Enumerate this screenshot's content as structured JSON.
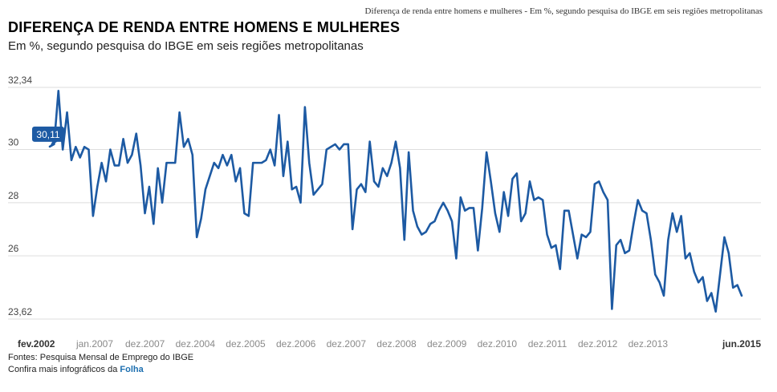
{
  "header": {
    "top_caption": "Diferença de renda entre homens e mulheres - Em %, segundo pesquisa do IBGE em seis regiões metropolitanas",
    "title": "DIFERENÇA DE RENDA ENTRE HOMENS E MULHERES",
    "subtitle": "Em %, segundo pesquisa do IBGE em seis regiões metropolitanas"
  },
  "footer": {
    "sources": "Fontes: Pesquisa Mensal de Emprego do IBGE",
    "more_prefix": "Confira mais infográficos da ",
    "brand": "Folha"
  },
  "colors": {
    "line": "#1d5aa3",
    "grid": "#dddddd",
    "label_box": "#1d5aa3",
    "axis_text": "#8a8a8a",
    "axis_text_bold": "#333333"
  },
  "chart_data": {
    "type": "line",
    "title": "DIFERENÇA DE RENDA ENTRE HOMENS E MULHERES",
    "subtitle": "Em %, segundo pesquisa do IBGE em seis regiões metropolitanas",
    "ylim": [
      23.62,
      32.34
    ],
    "yticks": [
      "32,34",
      "30",
      "28",
      "26",
      "23,62"
    ],
    "ytick_values": [
      32.34,
      30,
      28,
      26,
      23.62
    ],
    "xtick_labels": [
      "fev.2002",
      "jan.2007",
      "dez.2007",
      "dez.2004",
      "dez.2005",
      "dez.2006",
      "dez.2007",
      "dez.2008",
      "dez.2009",
      "dez.2010",
      "dez.2011",
      "dez.2012",
      "dez.2013",
      "jun.2015"
    ],
    "xtick_bold": [
      true,
      false,
      false,
      false,
      false,
      false,
      false,
      false,
      false,
      false,
      false,
      false,
      false,
      true
    ],
    "annotation": {
      "text": "30,11",
      "point_index": 0
    },
    "grid": true,
    "series": [
      {
        "values": [
          30.11,
          30.2,
          32.21,
          30.0,
          31.4,
          29.6,
          30.1,
          29.7,
          30.1,
          30.0,
          27.5,
          28.6,
          29.5,
          28.8,
          30.0,
          29.4,
          29.4,
          30.4,
          29.5,
          29.8,
          30.6,
          29.4,
          27.6,
          28.6,
          27.2,
          29.3,
          28.0,
          29.5,
          29.5,
          29.5,
          31.4,
          30.1,
          30.4,
          29.8,
          26.7,
          27.4,
          28.5,
          29.0,
          29.5,
          29.3,
          29.8,
          29.4,
          29.8,
          28.8,
          29.3,
          27.6,
          27.5,
          29.5,
          29.5,
          29.5,
          29.6,
          30.0,
          29.4,
          31.3,
          29.0,
          30.3,
          28.5,
          28.6,
          28.0,
          31.6,
          29.5,
          28.3,
          28.5,
          28.7,
          30.0,
          30.1,
          30.2,
          30.0,
          30.2,
          30.2,
          27.0,
          28.5,
          28.7,
          28.4,
          30.3,
          28.8,
          28.6,
          29.3,
          29.0,
          29.5,
          30.3,
          29.3,
          26.6,
          29.9,
          27.7,
          27.1,
          26.8,
          26.9,
          27.2,
          27.3,
          27.7,
          28.0,
          27.7,
          27.3,
          25.9,
          28.2,
          27.7,
          27.8,
          27.8,
          26.2,
          27.8,
          29.9,
          28.8,
          27.6,
          26.9,
          28.4,
          27.5,
          28.9,
          29.1,
          27.3,
          27.6,
          28.8,
          28.1,
          28.2,
          28.1,
          26.8,
          26.3,
          26.4,
          25.5,
          27.7,
          27.7,
          26.8,
          25.9,
          26.8,
          26.7,
          26.9,
          28.7,
          28.8,
          28.4,
          28.1,
          24.0,
          26.4,
          26.6,
          26.1,
          26.2,
          27.2,
          28.1,
          27.7,
          27.6,
          26.6,
          25.3,
          25.0,
          24.5,
          26.6,
          27.6,
          26.9,
          27.5,
          25.9,
          26.1,
          25.4,
          25.0,
          25.2,
          24.3,
          24.6,
          23.9,
          25.3,
          26.7,
          26.1,
          24.8,
          24.9,
          24.5
        ]
      }
    ]
  }
}
